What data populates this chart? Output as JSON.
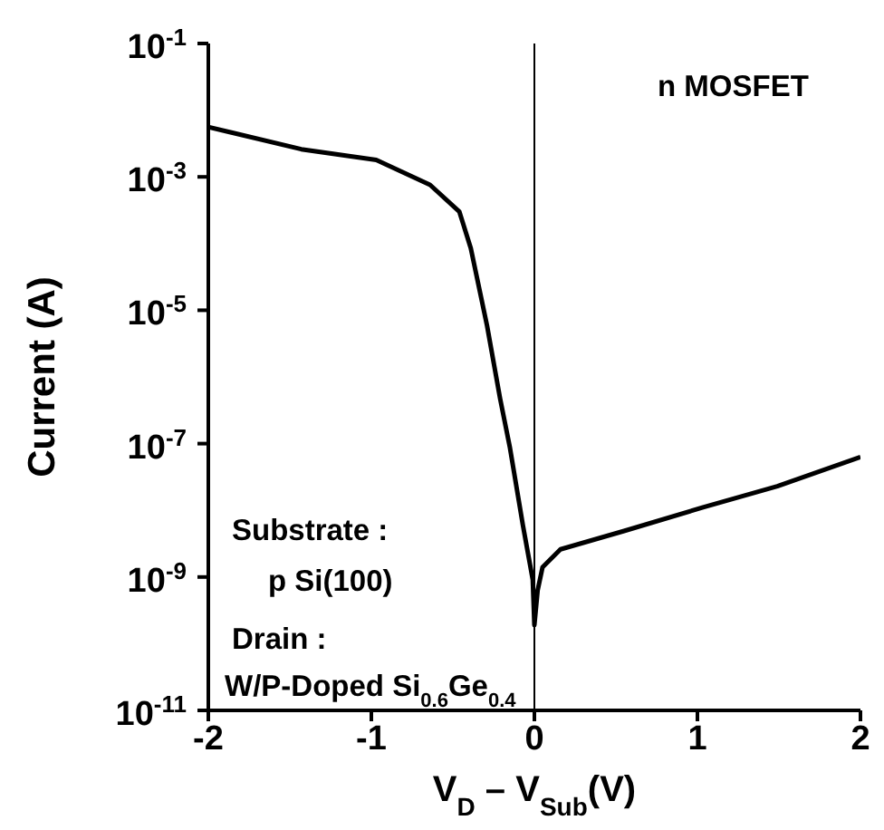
{
  "chart_data": {
    "type": "line",
    "xlabel": "V$_{D}$ – V$_{Sub}$(V)",
    "ylabel": "Current (A)",
    "log": "y",
    "marker": "none",
    "line_style": "solid",
    "xlim": [
      -2,
      2
    ],
    "xticks": [
      -2,
      -1,
      0,
      1,
      2
    ],
    "ylim": [
      1e-11,
      0.1
    ],
    "yticks": [
      {
        "value": 0.1,
        "label": "10$^{-1}$"
      },
      {
        "value": 0.001,
        "label": "10$^{-3}$"
      },
      {
        "value": 1e-05,
        "label": "10$^{-5}$"
      },
      {
        "value": 1e-07,
        "label": "10$^{-7}$"
      },
      {
        "value": 1e-09,
        "label": "10$^{-9}$"
      },
      {
        "value": 1e-11,
        "label": "10$^{-11}$"
      }
    ],
    "ref_lines": [
      {
        "axis": "x",
        "value": 0,
        "color": "#000000"
      }
    ],
    "annotations": [
      "n MOSFET",
      "Substrate :",
      "p Si(100)",
      "Drain :",
      "W/P-Doped Si$_{0.6}$Ge$_{0.4}$"
    ],
    "series": [
      {
        "color": "#000000",
        "x": [
          -2,
          -1.43,
          -0.97,
          -0.64,
          -0.46,
          -0.39,
          -0.29,
          -0.21,
          -0.15,
          -0.07,
          -0.01,
          0,
          0.02,
          0.05,
          0.16,
          0.55,
          1.03,
          1.49,
          2
        ],
        "values": [
          0.0056,
          0.0026,
          0.0018,
          0.00076,
          0.0003,
          8.5e-05,
          5.8e-06,
          4.7e-07,
          8.7e-08,
          5.9e-09,
          9.1e-10,
          1.9e-10,
          6.3e-10,
          1.4e-09,
          2.6e-09,
          4.9e-09,
          1.1e-08,
          2.3e-08,
          6.3e-08
        ]
      }
    ]
  }
}
